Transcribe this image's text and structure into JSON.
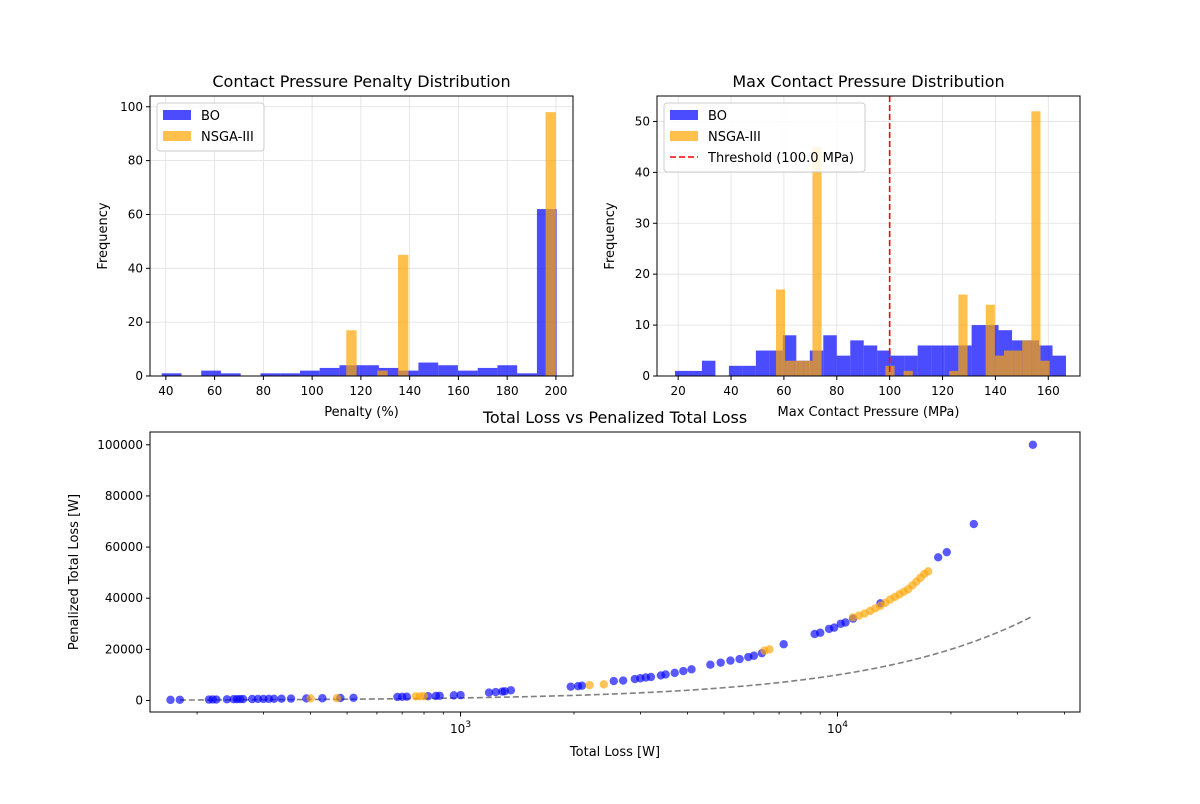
{
  "colors": {
    "bo": "#0000ff",
    "nsga": "#ffa500",
    "threshold": "#ff0000",
    "reference": "#808080",
    "grid": "#e0e0e0"
  },
  "chart_data": [
    {
      "type": "bar",
      "subtype": "histogram",
      "title": "Contact Pressure Penalty Distribution",
      "xlabel": "Penalty (%)",
      "ylabel": "Frequency",
      "xlim": [
        33.5,
        207
      ],
      "ylim": [
        0,
        104
      ],
      "xticks": [
        40,
        60,
        80,
        100,
        120,
        140,
        160,
        180,
        200
      ],
      "yticks": [
        0,
        20,
        40,
        60,
        80,
        100
      ],
      "grid": true,
      "legend_position": "top-left",
      "series": [
        {
          "name": "BO",
          "color_key": "bo",
          "bin_width": 8.1,
          "bins": [
            [
              38.3,
              1
            ],
            [
              54.5,
              2
            ],
            [
              62.6,
              1
            ],
            [
              78.8,
              1
            ],
            [
              86.9,
              1
            ],
            [
              95.0,
              2
            ],
            [
              103.1,
              3
            ],
            [
              111.2,
              4
            ],
            [
              119.3,
              4
            ],
            [
              127.4,
              3
            ],
            [
              135.5,
              2
            ],
            [
              143.6,
              5
            ],
            [
              151.7,
              4
            ],
            [
              159.8,
              2
            ],
            [
              167.9,
              3
            ],
            [
              176.0,
              4
            ],
            [
              184.1,
              1
            ],
            [
              192.2,
              62
            ]
          ]
        },
        {
          "name": "NSGA-III",
          "color_key": "nsga",
          "bin_width": 4.25,
          "bins": [
            [
              114.0,
              17
            ],
            [
              126.75,
              2
            ],
            [
              135.25,
              45
            ],
            [
              195.75,
              98
            ]
          ]
        }
      ]
    },
    {
      "type": "bar",
      "subtype": "histogram",
      "title": "Max Contact Pressure Distribution",
      "xlabel": "Max Contact Pressure (MPa)",
      "ylabel": "Frequency",
      "xlim": [
        12,
        172
      ],
      "ylim": [
        0,
        55
      ],
      "xticks": [
        20,
        40,
        60,
        80,
        100,
        120,
        140,
        160
      ],
      "yticks": [
        0,
        10,
        20,
        30,
        40,
        50
      ],
      "grid": true,
      "legend_position": "top-left",
      "threshold": {
        "value": 100,
        "label": "Threshold (100.0 MPa)"
      },
      "series": [
        {
          "name": "BO",
          "color_key": "bo",
          "bin_width": 5.1,
          "bins": [
            [
              18.8,
              1
            ],
            [
              23.9,
              1
            ],
            [
              29.0,
              3
            ],
            [
              39.2,
              2
            ],
            [
              44.3,
              2
            ],
            [
              49.4,
              5
            ],
            [
              54.5,
              5
            ],
            [
              59.6,
              8
            ],
            [
              64.7,
              3
            ],
            [
              69.8,
              5
            ],
            [
              74.9,
              8
            ],
            [
              80.0,
              4
            ],
            [
              85.1,
              7
            ],
            [
              90.2,
              6
            ],
            [
              95.3,
              5
            ],
            [
              100.4,
              4
            ],
            [
              105.5,
              4
            ],
            [
              110.6,
              6
            ],
            [
              115.7,
              6
            ],
            [
              120.8,
              6
            ],
            [
              125.9,
              6
            ],
            [
              131.0,
              10
            ],
            [
              136.1,
              10
            ],
            [
              141.2,
              9
            ],
            [
              146.3,
              7
            ],
            [
              151.4,
              7
            ],
            [
              156.5,
              6
            ],
            [
              161.6,
              4
            ]
          ]
        },
        {
          "name": "NSGA-III",
          "color_key": "nsga",
          "bin_width": 3.45,
          "bins": [
            [
              57.0,
              17
            ],
            [
              60.45,
              3
            ],
            [
              63.9,
              3
            ],
            [
              67.35,
              3
            ],
            [
              70.8,
              45
            ],
            [
              98.4,
              2
            ],
            [
              105.3,
              1
            ],
            [
              122.55,
              1
            ],
            [
              126.0,
              16
            ],
            [
              136.35,
              14
            ],
            [
              139.8,
              4
            ],
            [
              143.25,
              5
            ],
            [
              146.7,
              5
            ],
            [
              150.15,
              7
            ],
            [
              153.6,
              52
            ],
            [
              157.05,
              3
            ]
          ]
        }
      ]
    },
    {
      "type": "scatter",
      "title": "Total Loss vs Penalized Total Loss",
      "xlabel": "Total Loss [W]",
      "ylabel": "Penalized Total Loss [W]",
      "xscale": "log",
      "xlim": [
        150,
        44000
      ],
      "ylim": [
        -4500,
        105000
      ],
      "xtick_labels": [
        {
          "value": 1000,
          "label": "10",
          "exp": "3"
        },
        {
          "value": 10000,
          "label": "10",
          "exp": "4"
        }
      ],
      "yticks": [
        0,
        20000,
        40000,
        60000,
        80000,
        100000
      ],
      "grid": false,
      "reference_line": {
        "x": [
          180,
          33000
        ],
        "y": [
          180,
          33000
        ],
        "style": "dashed"
      },
      "series": [
        {
          "name": "BO",
          "color_key": "bo",
          "points": [
            [
              170,
              250
            ],
            [
              180,
              280
            ],
            [
              215,
              350
            ],
            [
              220,
              400
            ],
            [
              225,
              380
            ],
            [
              240,
              450
            ],
            [
              250,
              500
            ],
            [
              255,
              520
            ],
            [
              260,
              540
            ],
            [
              265,
              560
            ],
            [
              280,
              580
            ],
            [
              290,
              600
            ],
            [
              300,
              620
            ],
            [
              310,
              640
            ],
            [
              320,
              660
            ],
            [
              335,
              700
            ],
            [
              355,
              740
            ],
            [
              390,
              800
            ],
            [
              430,
              880
            ],
            [
              480,
              980
            ],
            [
              520,
              1060
            ],
            [
              680,
              1400
            ],
            [
              700,
              1450
            ],
            [
              720,
              1500
            ],
            [
              820,
              1700
            ],
            [
              860,
              1800
            ],
            [
              880,
              1850
            ],
            [
              960,
              2000
            ],
            [
              1000,
              2100
            ],
            [
              1190,
              3100
            ],
            [
              1240,
              3300
            ],
            [
              1290,
              3500
            ],
            [
              1310,
              3600
            ],
            [
              1360,
              4000
            ],
            [
              1960,
              5400
            ],
            [
              2050,
              5600
            ],
            [
              2100,
              5800
            ],
            [
              2550,
              7600
            ],
            [
              2700,
              7800
            ],
            [
              2900,
              8400
            ],
            [
              3000,
              8700
            ],
            [
              3100,
              9000
            ],
            [
              3200,
              9200
            ],
            [
              3400,
              9800
            ],
            [
              3500,
              10200
            ],
            [
              3700,
              10800
            ],
            [
              3900,
              11500
            ],
            [
              4100,
              12200
            ],
            [
              4600,
              14000
            ],
            [
              4900,
              14800
            ],
            [
              5200,
              15600
            ],
            [
              5500,
              16200
            ],
            [
              5800,
              17000
            ],
            [
              6000,
              17500
            ],
            [
              6300,
              18500
            ],
            [
              7200,
              22000
            ],
            [
              8700,
              26000
            ],
            [
              9000,
              26500
            ],
            [
              9500,
              28000
            ],
            [
              9800,
              28500
            ],
            [
              10200,
              30000
            ],
            [
              10500,
              30500
            ],
            [
              11000,
              32000
            ],
            [
              13000,
              38000
            ],
            [
              18500,
              56000
            ],
            [
              19500,
              58000
            ],
            [
              23000,
              69000
            ],
            [
              33000,
              100000
            ]
          ]
        },
        {
          "name": "NSGA-III",
          "color_key": "nsga",
          "points": [
            [
              400,
              800
            ],
            [
              470,
              900
            ],
            [
              760,
              1600
            ],
            [
              780,
              1650
            ],
            [
              800,
              1700
            ],
            [
              2200,
              6000
            ],
            [
              2400,
              6300
            ],
            [
              6400,
              19500
            ],
            [
              6600,
              20000
            ],
            [
              11000,
              32500
            ],
            [
              11400,
              33200
            ],
            [
              11800,
              34000
            ],
            [
              12200,
              35000
            ],
            [
              12600,
              36000
            ],
            [
              13000,
              37000
            ],
            [
              13400,
              38200
            ],
            [
              13800,
              39500
            ],
            [
              14200,
              40500
            ],
            [
              14600,
              41500
            ],
            [
              15000,
              42500
            ],
            [
              15400,
              43500
            ],
            [
              15800,
              45000
            ],
            [
              16200,
              46500
            ],
            [
              16600,
              48000
            ],
            [
              17000,
              49500
            ],
            [
              17400,
              50500
            ]
          ]
        }
      ]
    }
  ]
}
